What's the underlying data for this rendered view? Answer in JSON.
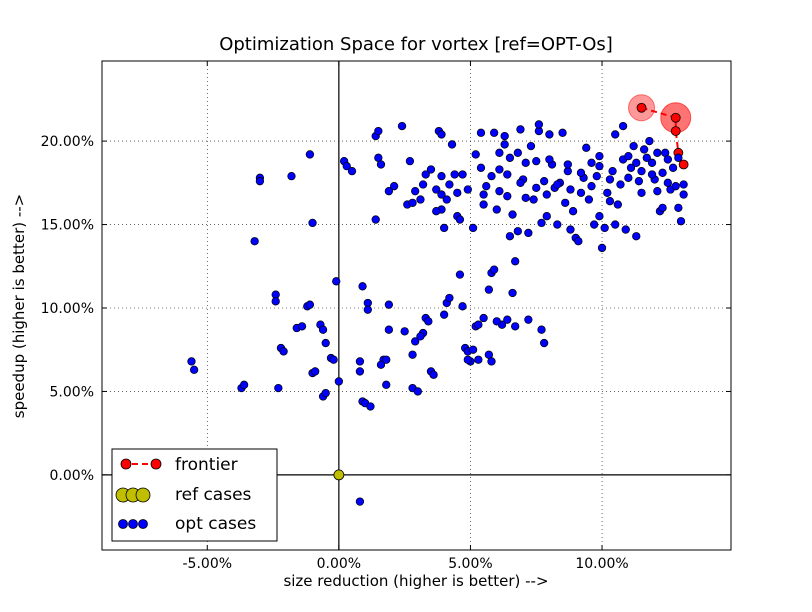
{
  "chart_data": {
    "type": "scatter",
    "title": "Optimization Space for vortex [ref=OPT-Os]",
    "xlabel": "size reduction (higher is better) -->",
    "ylabel": "speedup (higher is better) -->",
    "xlim": [
      -9.0,
      14.9
    ],
    "ylim": [
      -4.5,
      24.8
    ],
    "xticks": [
      -5,
      0,
      5,
      10
    ],
    "yticks": [
      0,
      5,
      10,
      15,
      20
    ],
    "xtick_labels": [
      "-5.00%",
      "0.00%",
      "5.00%",
      "10.00%"
    ],
    "ytick_labels": [
      "0.00%",
      "5.00%",
      "10.00%",
      "15.00%",
      "20.00%"
    ],
    "grid": true,
    "legend_position": "lower-left",
    "series": [
      {
        "name": "frontier",
        "style": "line-marker",
        "color": "#ff0000",
        "points": [
          [
            11.5,
            22.0
          ],
          [
            12.8,
            21.4
          ],
          [
            12.8,
            20.6
          ],
          [
            12.9,
            19.3
          ],
          [
            13.1,
            18.6
          ]
        ]
      },
      {
        "name": "ref cases",
        "style": "marker",
        "color": "#bfbf00",
        "points": [
          [
            0.0,
            0.0
          ]
        ]
      },
      {
        "name": "opt cases",
        "style": "marker",
        "color": "#0000ff",
        "points": [
          [
            -5.6,
            6.8
          ],
          [
            -5.5,
            6.3
          ],
          [
            -3.7,
            5.2
          ],
          [
            -3.6,
            5.4
          ],
          [
            -3.2,
            14.0
          ],
          [
            -3.0,
            17.8
          ],
          [
            -3.0,
            17.6
          ],
          [
            -2.4,
            10.8
          ],
          [
            -2.4,
            10.4
          ],
          [
            -2.3,
            5.2
          ],
          [
            -2.2,
            7.6
          ],
          [
            -2.1,
            7.4
          ],
          [
            -1.8,
            17.9
          ],
          [
            -1.6,
            8.8
          ],
          [
            -1.4,
            8.9
          ],
          [
            -1.2,
            10.1
          ],
          [
            -1.1,
            10.2
          ],
          [
            -1.1,
            19.2
          ],
          [
            -1.0,
            15.1
          ],
          [
            -1.0,
            6.1
          ],
          [
            -0.9,
            6.2
          ],
          [
            -0.7,
            9.0
          ],
          [
            -0.6,
            8.7
          ],
          [
            -0.5,
            7.9
          ],
          [
            -0.6,
            4.7
          ],
          [
            -0.5,
            4.9
          ],
          [
            -0.3,
            7.0
          ],
          [
            -0.2,
            6.9
          ],
          [
            -0.1,
            11.6
          ],
          [
            0.0,
            5.6
          ],
          [
            0.2,
            18.8
          ],
          [
            0.3,
            18.5
          ],
          [
            0.5,
            18.2
          ],
          [
            0.8,
            6.8
          ],
          [
            0.8,
            6.2
          ],
          [
            0.9,
            4.4
          ],
          [
            1.0,
            4.3
          ],
          [
            1.1,
            10.3
          ],
          [
            1.1,
            9.9
          ],
          [
            1.2,
            4.1
          ],
          [
            0.9,
            11.3
          ],
          [
            1.4,
            15.3
          ],
          [
            1.4,
            20.3
          ],
          [
            1.5,
            20.6
          ],
          [
            1.5,
            19.0
          ],
          [
            1.6,
            18.6
          ],
          [
            1.7,
            6.9
          ],
          [
            1.8,
            6.9
          ],
          [
            1.8,
            5.4
          ],
          [
            1.9,
            10.2
          ],
          [
            1.9,
            17.0
          ],
          [
            2.1,
            17.3
          ],
          [
            1.6,
            6.6
          ],
          [
            2.4,
            20.9
          ],
          [
            2.6,
            16.2
          ],
          [
            2.7,
            18.8
          ],
          [
            2.8,
            16.3
          ],
          [
            2.8,
            7.2
          ],
          [
            2.8,
            5.2
          ],
          [
            2.9,
            8.0
          ],
          [
            3.0,
            5.0
          ],
          [
            3.1,
            16.5
          ],
          [
            3.2,
            17.4
          ],
          [
            3.3,
            9.4
          ],
          [
            3.4,
            9.2
          ],
          [
            3.5,
            18.3
          ],
          [
            3.5,
            6.2
          ],
          [
            3.6,
            6.0
          ],
          [
            3.7,
            17.1
          ],
          [
            3.9,
            15.9
          ],
          [
            3.9,
            16.8
          ],
          [
            3.8,
            20.6
          ],
          [
            3.9,
            20.4
          ],
          [
            3.9,
            17.9
          ],
          [
            4.0,
            14.8
          ],
          [
            4.1,
            10.3
          ],
          [
            4.2,
            10.6
          ],
          [
            4.2,
            17.4
          ],
          [
            4.3,
            19.8
          ],
          [
            4.4,
            18.0
          ],
          [
            4.5,
            15.5
          ],
          [
            4.6,
            15.3
          ],
          [
            4.6,
            12.0
          ],
          [
            4.7,
            18.0
          ],
          [
            4.8,
            7.6
          ],
          [
            4.9,
            7.4
          ],
          [
            5.0,
            6.8
          ],
          [
            5.2,
            8.9
          ],
          [
            5.3,
            9.0
          ],
          [
            5.4,
            20.5
          ],
          [
            5.4,
            18.4
          ],
          [
            5.5,
            16.8
          ],
          [
            5.6,
            17.3
          ],
          [
            5.7,
            11.1
          ],
          [
            5.7,
            7.2
          ],
          [
            5.8,
            12.1
          ],
          [
            5.8,
            6.8
          ],
          [
            5.9,
            12.3
          ],
          [
            5.9,
            20.5
          ],
          [
            6.0,
            15.9
          ],
          [
            6.1,
            17.0
          ],
          [
            6.1,
            19.3
          ],
          [
            6.2,
            9.0
          ],
          [
            6.3,
            20.3
          ],
          [
            6.3,
            19.8
          ],
          [
            6.4,
            18.0
          ],
          [
            6.4,
            16.7
          ],
          [
            6.5,
            14.3
          ],
          [
            6.6,
            15.6
          ],
          [
            6.6,
            10.9
          ],
          [
            6.7,
            12.8
          ],
          [
            6.7,
            8.9
          ],
          [
            6.8,
            19.3
          ],
          [
            6.9,
            20.7
          ],
          [
            7.0,
            17.7
          ],
          [
            7.1,
            16.6
          ],
          [
            7.2,
            14.5
          ],
          [
            7.2,
            9.3
          ],
          [
            7.3,
            19.7
          ],
          [
            7.4,
            16.5
          ],
          [
            7.5,
            18.8
          ],
          [
            7.6,
            20.6
          ],
          [
            7.6,
            21.0
          ],
          [
            7.7,
            15.1
          ],
          [
            7.7,
            8.7
          ],
          [
            7.8,
            7.9
          ],
          [
            7.8,
            17.6
          ],
          [
            7.9,
            16.8
          ],
          [
            8.0,
            20.4
          ],
          [
            8.1,
            18.6
          ],
          [
            8.2,
            17.2
          ],
          [
            8.3,
            15.0
          ],
          [
            8.4,
            17.5
          ],
          [
            8.5,
            20.5
          ],
          [
            8.6,
            16.3
          ],
          [
            8.7,
            18.2
          ],
          [
            8.8,
            17.1
          ],
          [
            8.9,
            15.8
          ],
          [
            9.0,
            14.2
          ],
          [
            9.1,
            14.0
          ],
          [
            9.2,
            16.9
          ],
          [
            9.3,
            17.8
          ],
          [
            9.4,
            19.6
          ],
          [
            9.5,
            16.5
          ],
          [
            9.6,
            17.3
          ],
          [
            9.7,
            15.0
          ],
          [
            9.8,
            17.9
          ],
          [
            9.9,
            18.5
          ],
          [
            10.0,
            13.6
          ],
          [
            10.1,
            14.8
          ],
          [
            10.2,
            16.9
          ],
          [
            10.3,
            17.7
          ],
          [
            10.4,
            18.2
          ],
          [
            10.5,
            15.0
          ],
          [
            10.6,
            16.2
          ],
          [
            10.7,
            17.4
          ],
          [
            10.8,
            18.9
          ],
          [
            10.9,
            14.7
          ],
          [
            11.0,
            17.8
          ],
          [
            11.1,
            18.4
          ],
          [
            11.2,
            19.7
          ],
          [
            11.3,
            14.3
          ],
          [
            11.4,
            17.6
          ],
          [
            11.5,
            18.2
          ],
          [
            11.6,
            19.5
          ],
          [
            11.7,
            19.0
          ],
          [
            11.8,
            20.0
          ],
          [
            11.9,
            18.7
          ],
          [
            12.0,
            17.7
          ],
          [
            12.1,
            19.3
          ],
          [
            12.2,
            15.8
          ],
          [
            12.3,
            16.0
          ],
          [
            12.3,
            18.1
          ],
          [
            12.4,
            19.3
          ],
          [
            12.5,
            18.9
          ],
          [
            12.6,
            17.1
          ],
          [
            12.7,
            18.4
          ],
          [
            12.8,
            17.3
          ],
          [
            12.9,
            16.0
          ],
          [
            12.9,
            19.0
          ],
          [
            13.0,
            15.2
          ],
          [
            13.1,
            16.8
          ],
          [
            13.1,
            17.4
          ],
          [
            10.5,
            20.4
          ],
          [
            10.8,
            20.9
          ],
          [
            11.0,
            19.1
          ],
          [
            11.3,
            18.7
          ],
          [
            11.9,
            18.0
          ],
          [
            12.5,
            17.5
          ],
          [
            9.9,
            19.1
          ],
          [
            9.6,
            18.7
          ],
          [
            9.2,
            18.1
          ],
          [
            8.7,
            18.6
          ],
          [
            8.3,
            17.4
          ],
          [
            8.0,
            18.9
          ],
          [
            7.5,
            17.2
          ],
          [
            7.1,
            18.7
          ],
          [
            6.9,
            17.5
          ],
          [
            6.5,
            19.0
          ],
          [
            6.1,
            18.3
          ],
          [
            5.8,
            17.9
          ],
          [
            5.5,
            16.2
          ],
          [
            5.2,
            19.2
          ],
          [
            4.9,
            17.1
          ],
          [
            4.5,
            16.9
          ],
          [
            4.1,
            16.5
          ],
          [
            3.7,
            15.8
          ],
          [
            3.3,
            18.0
          ],
          [
            2.9,
            17.0
          ],
          [
            5.1,
            14.8
          ],
          [
            6.8,
            14.6
          ],
          [
            7.9,
            15.5
          ],
          [
            8.8,
            14.7
          ],
          [
            9.9,
            15.5
          ],
          [
            10.3,
            16.4
          ],
          [
            11.5,
            16.9
          ],
          [
            12.1,
            17.0
          ],
          [
            0.8,
            -1.6
          ],
          [
            3.2,
            8.5
          ],
          [
            2.5,
            8.6
          ],
          [
            3.1,
            8.3
          ],
          [
            1.9,
            8.7
          ],
          [
            4.0,
            9.6
          ],
          [
            4.7,
            10.1
          ],
          [
            5.5,
            9.4
          ],
          [
            6.0,
            9.2
          ],
          [
            6.4,
            9.3
          ],
          [
            4.9,
            6.9
          ],
          [
            5.3,
            6.9
          ],
          [
            5.1,
            7.5
          ]
        ]
      }
    ]
  }
}
